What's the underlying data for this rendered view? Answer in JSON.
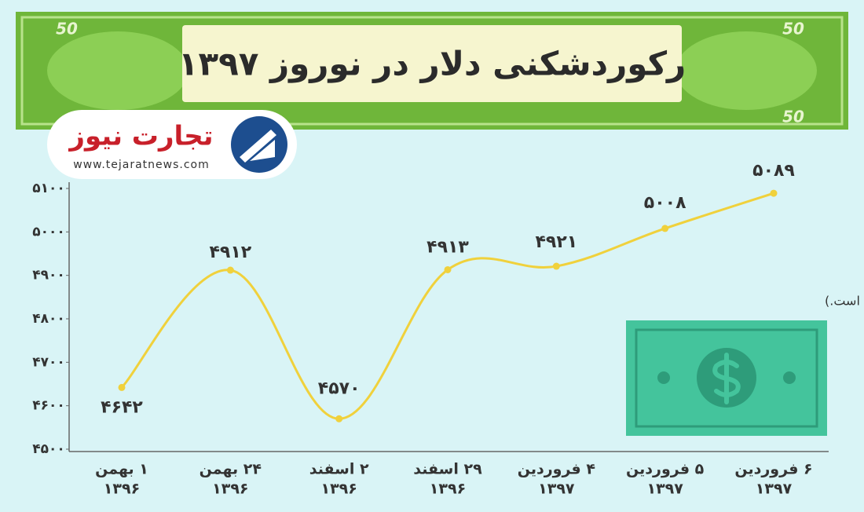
{
  "chart_data": {
    "type": "line",
    "title": "رکوردشکنی دلار در نوروز ۱۳۹۷",
    "banner_denomination": "50",
    "logo_name": "تجارت نیوز",
    "logo_url": "www.tejaratnews.com",
    "note": "(اعداد به تومان است.)",
    "categories": [
      [
        "۱ بهمن",
        "۱۳۹۶"
      ],
      [
        "۲۴ بهمن",
        "۱۳۹۶"
      ],
      [
        "۲ اسفند",
        "۱۳۹۶"
      ],
      [
        "۲۹ اسفند",
        "۱۳۹۶"
      ],
      [
        "۴ فروردین",
        "۱۳۹۷"
      ],
      [
        "۵ فروردین",
        "۱۳۹۷"
      ],
      [
        "۶ فروردین",
        "۱۳۹۷"
      ]
    ],
    "values": [
      4642,
      4912,
      4570,
      4913,
      4921,
      5008,
      5089
    ],
    "value_labels": [
      "۴۶۴۲",
      "۴۹۱۲",
      "۴۵۷۰",
      "۴۹۱۳",
      "۴۹۲۱",
      "۵۰۰۸",
      "۵۰۸۹"
    ],
    "color": "#f0d13c",
    "ylim": [
      4500,
      5100
    ],
    "yticks": [
      {
        "value": 4500,
        "label": "۴۵۰۰"
      },
      {
        "value": 4600,
        "label": "۴۶۰۰"
      },
      {
        "value": 4700,
        "label": "۴۷۰۰"
      },
      {
        "value": 4800,
        "label": "۴۸۰۰"
      },
      {
        "value": 4900,
        "label": "۴۹۰۰"
      },
      {
        "value": 5000,
        "label": "۵۰۰۰"
      },
      {
        "value": 5100,
        "label": "۵۱۰۰"
      }
    ],
    "grid": false
  }
}
